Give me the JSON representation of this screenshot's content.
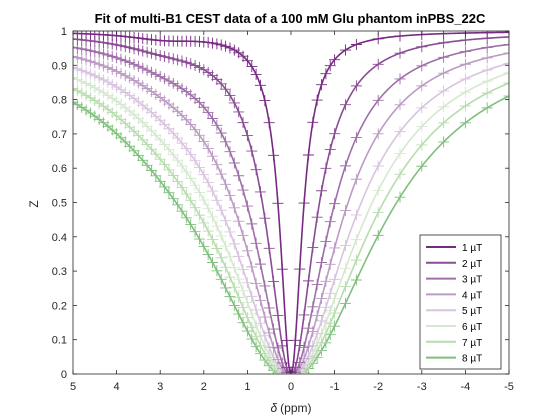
{
  "chart_data": {
    "type": "line",
    "title": "Fit of multi-B1 CEST data of a 100 mM Glu phantom inPBS_22C",
    "xlabel_symbol": "δ",
    "xlabel_unit": "(ppm)",
    "ylabel": "Z",
    "xlim": [
      5,
      -5
    ],
    "ylim": [
      0,
      1
    ],
    "x_reversed": true,
    "x_ticks": [
      5,
      4,
      3,
      2,
      1,
      0,
      -1,
      -2,
      -3,
      -4,
      -5
    ],
    "x_tick_labels": [
      "5",
      "4",
      "3",
      "2",
      "1",
      "0",
      "-1",
      "-2",
      "-3",
      "-4",
      "-5"
    ],
    "y_ticks": [
      0,
      0.1,
      0.2,
      0.3,
      0.4,
      0.5,
      0.6,
      0.7,
      0.8,
      0.9,
      1
    ],
    "y_tick_labels": [
      "0",
      "0.1",
      "0.2",
      "0.3",
      "0.4",
      "0.5",
      "0.6",
      "0.7",
      "0.8",
      "0.9",
      "1"
    ],
    "legend_position": "lower-right",
    "marker": "plus",
    "grid": false,
    "series": [
      {
        "name": "1 µT",
        "color": "#762a83",
        "width": 0.3,
        "offset": 0.1,
        "exch_amp": 0.03,
        "exch_width": 1.0
      },
      {
        "name": "2 µT",
        "color": "#8a4c95",
        "width": 0.65,
        "offset": 0.1,
        "exch_amp": 0.045,
        "exch_width": 1.2
      },
      {
        "name": "3 µT",
        "color": "#9e6fa8",
        "width": 1.0,
        "offset": 0.1,
        "exch_amp": 0.055,
        "exch_width": 1.3
      },
      {
        "name": "4 µT",
        "color": "#bb9ac4",
        "width": 1.3,
        "offset": 0.1,
        "exch_amp": 0.06,
        "exch_width": 1.4
      },
      {
        "name": "5 µT",
        "color": "#d8c4de",
        "width": 1.6,
        "offset": 0.1,
        "exch_amp": 0.065,
        "exch_width": 1.5
      },
      {
        "name": "6 µT",
        "color": "#d5e8cf",
        "width": 1.85,
        "offset": 0.1,
        "exch_amp": 0.07,
        "exch_width": 1.6
      },
      {
        "name": "7 µT",
        "color": "#b7dcad",
        "width": 2.1,
        "offset": 0.1,
        "exch_amp": 0.075,
        "exch_width": 1.7
      },
      {
        "name": "8 µT",
        "color": "#7fbf7b",
        "width": 2.4,
        "offset": 0.1,
        "exch_amp": 0.08,
        "exch_width": 1.8
      }
    ],
    "data_points": {
      "x_start": 5,
      "x_end": -5,
      "dense_step": 0.1,
      "dense_range": [
        -1,
        5
      ],
      "sparse_x": [
        -1.25,
        -1.5,
        -2,
        -2.5,
        -3,
        -3.5,
        -4,
        -4.5,
        -5
      ]
    }
  }
}
